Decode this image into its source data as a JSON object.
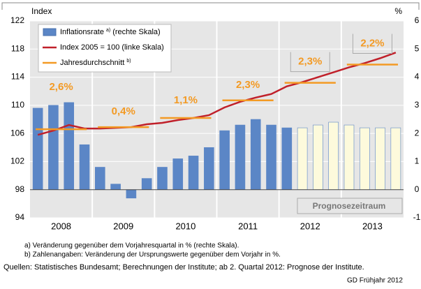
{
  "chart_data": {
    "type": "bar_line",
    "y_label": "Index",
    "y2_label": "%",
    "ylim": [
      94,
      122
    ],
    "yticks": [
      94,
      98,
      102,
      106,
      110,
      114,
      118,
      122
    ],
    "y2lim": [
      -1,
      6
    ],
    "y2ticks": [
      -1,
      0,
      1,
      2,
      3,
      4,
      5,
      6
    ],
    "years": [
      "2008",
      "2009",
      "2010",
      "2011",
      "2012",
      "2013"
    ],
    "series": [
      {
        "name": "Inflationsrate",
        "note": "a)",
        "suffix": "(rechte Skala)",
        "axis": "y2",
        "color": "#5b86c6",
        "colors": [
          "#5b86c6",
          "#5b86c6",
          "#5b86c6",
          "#5b86c6",
          "#5b86c6",
          "#5b86c6",
          "#5b86c6",
          "#5b86c6",
          "#5b86c6",
          "#5b86c6",
          "#5b86c6",
          "#5b86c6",
          "#5b86c6",
          "#5b86c6",
          "#5b86c6",
          "#5b86c6",
          "#5b86c6",
          "#fdfadc",
          "#fdfadc",
          "#fdfadc",
          "#fdfadc",
          "#fdfadc",
          "#fdfadc",
          "#fdfadc"
        ],
        "values": [
          2.9,
          3.0,
          3.1,
          1.6,
          0.8,
          0.2,
          -0.3,
          0.4,
          0.8,
          1.1,
          1.2,
          1.5,
          2.1,
          2.3,
          2.5,
          2.3,
          2.2,
          2.2,
          2.3,
          2.4,
          2.3,
          2.2,
          2.2,
          2.2
        ]
      },
      {
        "name": "Index 2005 = 100",
        "suffix": "(linke Skala)",
        "color": "#c0202a",
        "values": [
          105.8,
          106.4,
          107.2,
          106.7,
          106.7,
          106.8,
          106.9,
          107.3,
          107.5,
          107.9,
          108.2,
          108.6,
          109.7,
          110.5,
          111.1,
          111.6,
          112.7,
          113.3,
          114.0,
          114.7,
          115.4,
          116.0,
          116.7,
          117.5
        ]
      },
      {
        "name": "Jahresdurchschnitt",
        "note": "b)",
        "color": "#f39a24",
        "values": [
          106.6,
          106.9,
          108.2,
          110.7,
          113.2,
          115.8
        ],
        "annotations": [
          "2,6%",
          "0,4%",
          "1,1%",
          "2,3%",
          "2,3%",
          "2,2%"
        ]
      }
    ],
    "forecast_label": "Prognosezeitraum",
    "footnotes": [
      "a) Veränderung gegenüber dem Vorjahresquartal in % (rechte Skala).",
      "b) Zahlenangaben: Veränderung der Ursprungswerte gegenüber dem Vorjahr in %."
    ],
    "source": "Quellen: Statistisches Bundesamt; Berechnungen der Institute; ab 2. Quartal 2012: Prognose der Institute.",
    "credit": "GD Frühjahr 2012"
  }
}
